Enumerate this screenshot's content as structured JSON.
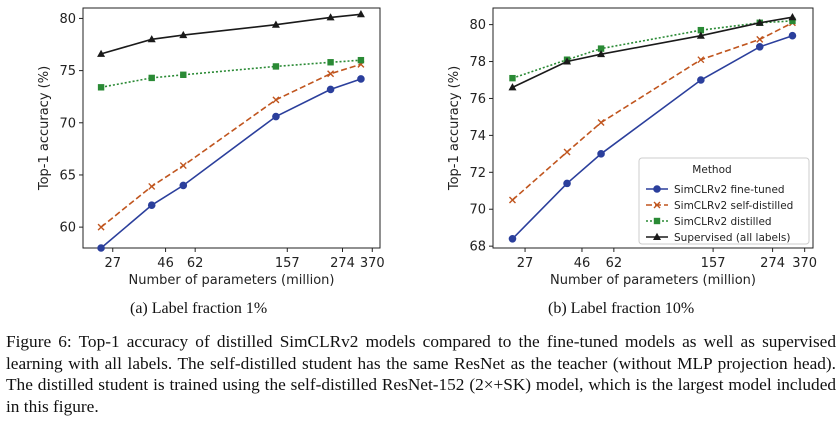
{
  "chart_data": [
    {
      "type": "line",
      "subcaption": "(a) Label fraction 1%",
      "xlabel": "Number of parameters (million)",
      "ylabel": "Top-1 accuracy (%)",
      "xscale": "log",
      "xticks": [
        27,
        46,
        62,
        157,
        274,
        370
      ],
      "xtick_labels": [
        "27",
        "46",
        "62",
        "157",
        "274",
        "370"
      ],
      "ylim": [
        58,
        81
      ],
      "yticks": [
        60,
        65,
        70,
        75,
        80
      ],
      "ytick_labels": [
        "60",
        "65",
        "70",
        "75",
        "80"
      ],
      "legend": null,
      "series": [
        {
          "name": "SimCLRv2 fine-tuned",
          "color": "#2b3f9c",
          "marker": "circle",
          "dash": "solid",
          "x": [
            24,
            40,
            55,
            140,
            243,
            330
          ],
          "values": [
            58.0,
            62.1,
            64.0,
            70.6,
            73.2,
            74.2
          ]
        },
        {
          "name": "SimCLRv2 self-distilled",
          "color": "#c0551e",
          "marker": "x",
          "dash": "dashed",
          "x": [
            24,
            40,
            55,
            140,
            243,
            330
          ],
          "values": [
            60.0,
            63.9,
            65.9,
            72.2,
            74.7,
            75.6
          ]
        },
        {
          "name": "SimCLRv2 distilled",
          "color": "#2a8a35",
          "marker": "square",
          "dash": "dotted",
          "x": [
            24,
            40,
            55,
            140,
            243,
            330
          ],
          "values": [
            73.4,
            74.3,
            74.6,
            75.4,
            75.8,
            76.0
          ]
        },
        {
          "name": "Supervised (all labels)",
          "color": "#1a1a1a",
          "marker": "triangle",
          "dash": "solid",
          "x": [
            24,
            40,
            55,
            140,
            243,
            330
          ],
          "values": [
            76.6,
            78.0,
            78.4,
            79.4,
            80.1,
            80.4
          ]
        }
      ]
    },
    {
      "type": "line",
      "subcaption": "(b) Label fraction 10%",
      "xlabel": "Number of parameters (million)",
      "ylabel": "Top-1 accuracy (%)",
      "xscale": "log",
      "xticks": [
        27,
        46,
        62,
        157,
        274,
        370
      ],
      "xtick_labels": [
        "27",
        "46",
        "62",
        "157",
        "274",
        "370"
      ],
      "ylim": [
        67.9,
        80.9
      ],
      "yticks": [
        68,
        70,
        72,
        74,
        76,
        78,
        80
      ],
      "ytick_labels": [
        "68",
        "70",
        "72",
        "74",
        "76",
        "78",
        "80"
      ],
      "legend": {
        "title": "Method",
        "position": "lower-right"
      },
      "series": [
        {
          "name": "SimCLRv2 fine-tuned",
          "color": "#2b3f9c",
          "marker": "circle",
          "dash": "solid",
          "x": [
            24,
            40,
            55,
            140,
            243,
            330
          ],
          "values": [
            68.4,
            71.4,
            73.0,
            77.0,
            78.8,
            79.4
          ]
        },
        {
          "name": "SimCLRv2 self-distilled",
          "color": "#c0551e",
          "marker": "x",
          "dash": "dashed",
          "x": [
            24,
            40,
            55,
            140,
            243,
            330
          ],
          "values": [
            70.5,
            73.1,
            74.7,
            78.1,
            79.2,
            80.1
          ]
        },
        {
          "name": "SimCLRv2 distilled",
          "color": "#2a8a35",
          "marker": "square",
          "dash": "dotted",
          "x": [
            24,
            40,
            55,
            140,
            243,
            330
          ],
          "values": [
            77.1,
            78.1,
            78.7,
            79.7,
            80.1,
            80.2
          ]
        },
        {
          "name": "Supervised (all labels)",
          "color": "#1a1a1a",
          "marker": "triangle",
          "dash": "solid",
          "x": [
            24,
            40,
            55,
            140,
            243,
            330
          ],
          "values": [
            76.6,
            78.0,
            78.4,
            79.4,
            80.1,
            80.4
          ]
        }
      ]
    }
  ],
  "caption": {
    "label": "Figure 6:",
    "text": "Top-1 accuracy of distilled SimCLRv2 models compared to the fine-tuned models as well as supervised learning with all labels. The self-distilled student has the same ResNet as the teacher (without MLP projection head). The distilled student is trained using the self-distilled ResNet-152 (2×+SK) model, which is the largest model included in this figure."
  }
}
